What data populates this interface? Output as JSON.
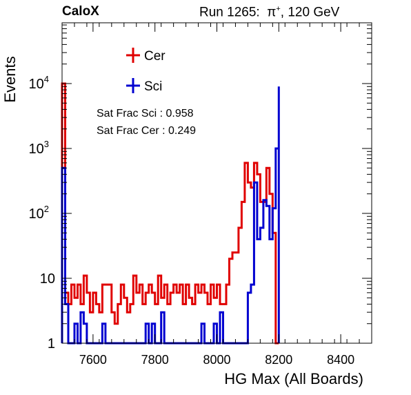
{
  "header": {
    "brand": "CaloX",
    "run_label": "Run 1265:",
    "particle": "π",
    "particle_charge": "+",
    "energy": ", 120 GeV"
  },
  "annotations": {
    "sat_frac_sci": "Sat Frac Sci : 0.958",
    "sat_frac_cer": "Sat Frac Cer : 0.249"
  },
  "colors": {
    "cer": "#e00000",
    "sci": "#0000d0",
    "axis": "#000000"
  },
  "chart_data": {
    "type": "line",
    "step": true,
    "title": "",
    "xlabel": "HG Max (All Boards)",
    "ylabel": "Events",
    "xlim": [
      7500,
      8500
    ],
    "ylim": [
      1,
      100000
    ],
    "yscale": "log",
    "grid": false,
    "legend_position": "top-left",
    "x_ticks": [
      {
        "value": 7600,
        "label": "7600"
      },
      {
        "value": 7800,
        "label": "7800"
      },
      {
        "value": 8000,
        "label": "8000"
      },
      {
        "value": 8200,
        "label": "8200"
      },
      {
        "value": 8400,
        "label": "8400"
      }
    ],
    "y_ticks": [
      {
        "value": 1,
        "base": "1",
        "exp": ""
      },
      {
        "value": 10,
        "base": "10",
        "exp": ""
      },
      {
        "value": 100,
        "base": "10",
        "exp": "2"
      },
      {
        "value": 1000,
        "base": "10",
        "exp": "3"
      },
      {
        "value": 10000,
        "base": "10",
        "exp": "4"
      }
    ],
    "series": [
      {
        "name": "Cer",
        "color": "#e00000",
        "x": [
          7500,
          7510,
          7520,
          7530,
          7540,
          7550,
          7560,
          7570,
          7580,
          7590,
          7600,
          7610,
          7620,
          7630,
          7640,
          7650,
          7660,
          7670,
          7680,
          7690,
          7700,
          7710,
          7720,
          7730,
          7740,
          7750,
          7760,
          7770,
          7780,
          7790,
          7800,
          7810,
          7820,
          7830,
          7840,
          7850,
          7860,
          7870,
          7880,
          7890,
          7900,
          7910,
          7920,
          7930,
          7940,
          7950,
          7960,
          7970,
          7980,
          7990,
          8000,
          8010,
          8020,
          8030,
          8040,
          8050,
          8060,
          8070,
          8080,
          8090,
          8100,
          8110,
          8120,
          8130,
          8140,
          8150,
          8160,
          8170,
          8180,
          8190,
          8200
        ],
        "values": [
          10000,
          6,
          4,
          8,
          5,
          8,
          4,
          11,
          6,
          3,
          6,
          4,
          3,
          8,
          8,
          8,
          3,
          2,
          4,
          8,
          5,
          3,
          4,
          11,
          6,
          8,
          4,
          6,
          8,
          6,
          4,
          11,
          5,
          8,
          4,
          6,
          8,
          6,
          8,
          4,
          8,
          5,
          4,
          8,
          6,
          8,
          6,
          4,
          8,
          5,
          8,
          4,
          4,
          8,
          20,
          25,
          25,
          60,
          150,
          600,
          300,
          250,
          600,
          400,
          150,
          150,
          500,
          200,
          50,
          1,
          1
        ]
      },
      {
        "name": "Sci",
        "color": "#0000d0",
        "x": [
          7500,
          7510,
          7520,
          7530,
          7540,
          7550,
          7560,
          7570,
          7580,
          7590,
          7600,
          7610,
          7620,
          7630,
          7640,
          7650,
          7660,
          7670,
          7680,
          7690,
          7700,
          7710,
          7720,
          7730,
          7740,
          7750,
          7760,
          7770,
          7780,
          7790,
          7800,
          7810,
          7820,
          7830,
          7840,
          7850,
          7860,
          7870,
          7880,
          7890,
          7900,
          7910,
          7920,
          7930,
          7940,
          7950,
          7960,
          7970,
          7980,
          7990,
          8000,
          8010,
          8020,
          8030,
          8040,
          8050,
          8060,
          8070,
          8080,
          8090,
          8100,
          8110,
          8120,
          8130,
          8140,
          8150,
          8160,
          8170,
          8180,
          8190,
          8200
        ],
        "values": [
          500,
          4,
          1,
          1,
          2,
          1,
          3,
          2,
          1,
          1,
          1,
          1,
          1,
          2,
          1,
          1,
          1,
          1,
          1,
          1,
          1,
          1,
          1,
          1,
          1,
          1,
          1,
          2,
          1,
          2,
          1,
          1,
          3,
          1,
          1,
          1,
          1,
          1,
          1,
          1,
          1,
          1,
          1,
          1,
          1,
          2,
          1,
          1,
          1,
          2,
          1,
          3,
          1,
          1,
          1,
          1,
          1,
          1,
          1,
          1,
          6,
          8,
          300,
          40,
          60,
          160,
          130,
          40,
          120,
          1000,
          9000
        ]
      }
    ]
  }
}
